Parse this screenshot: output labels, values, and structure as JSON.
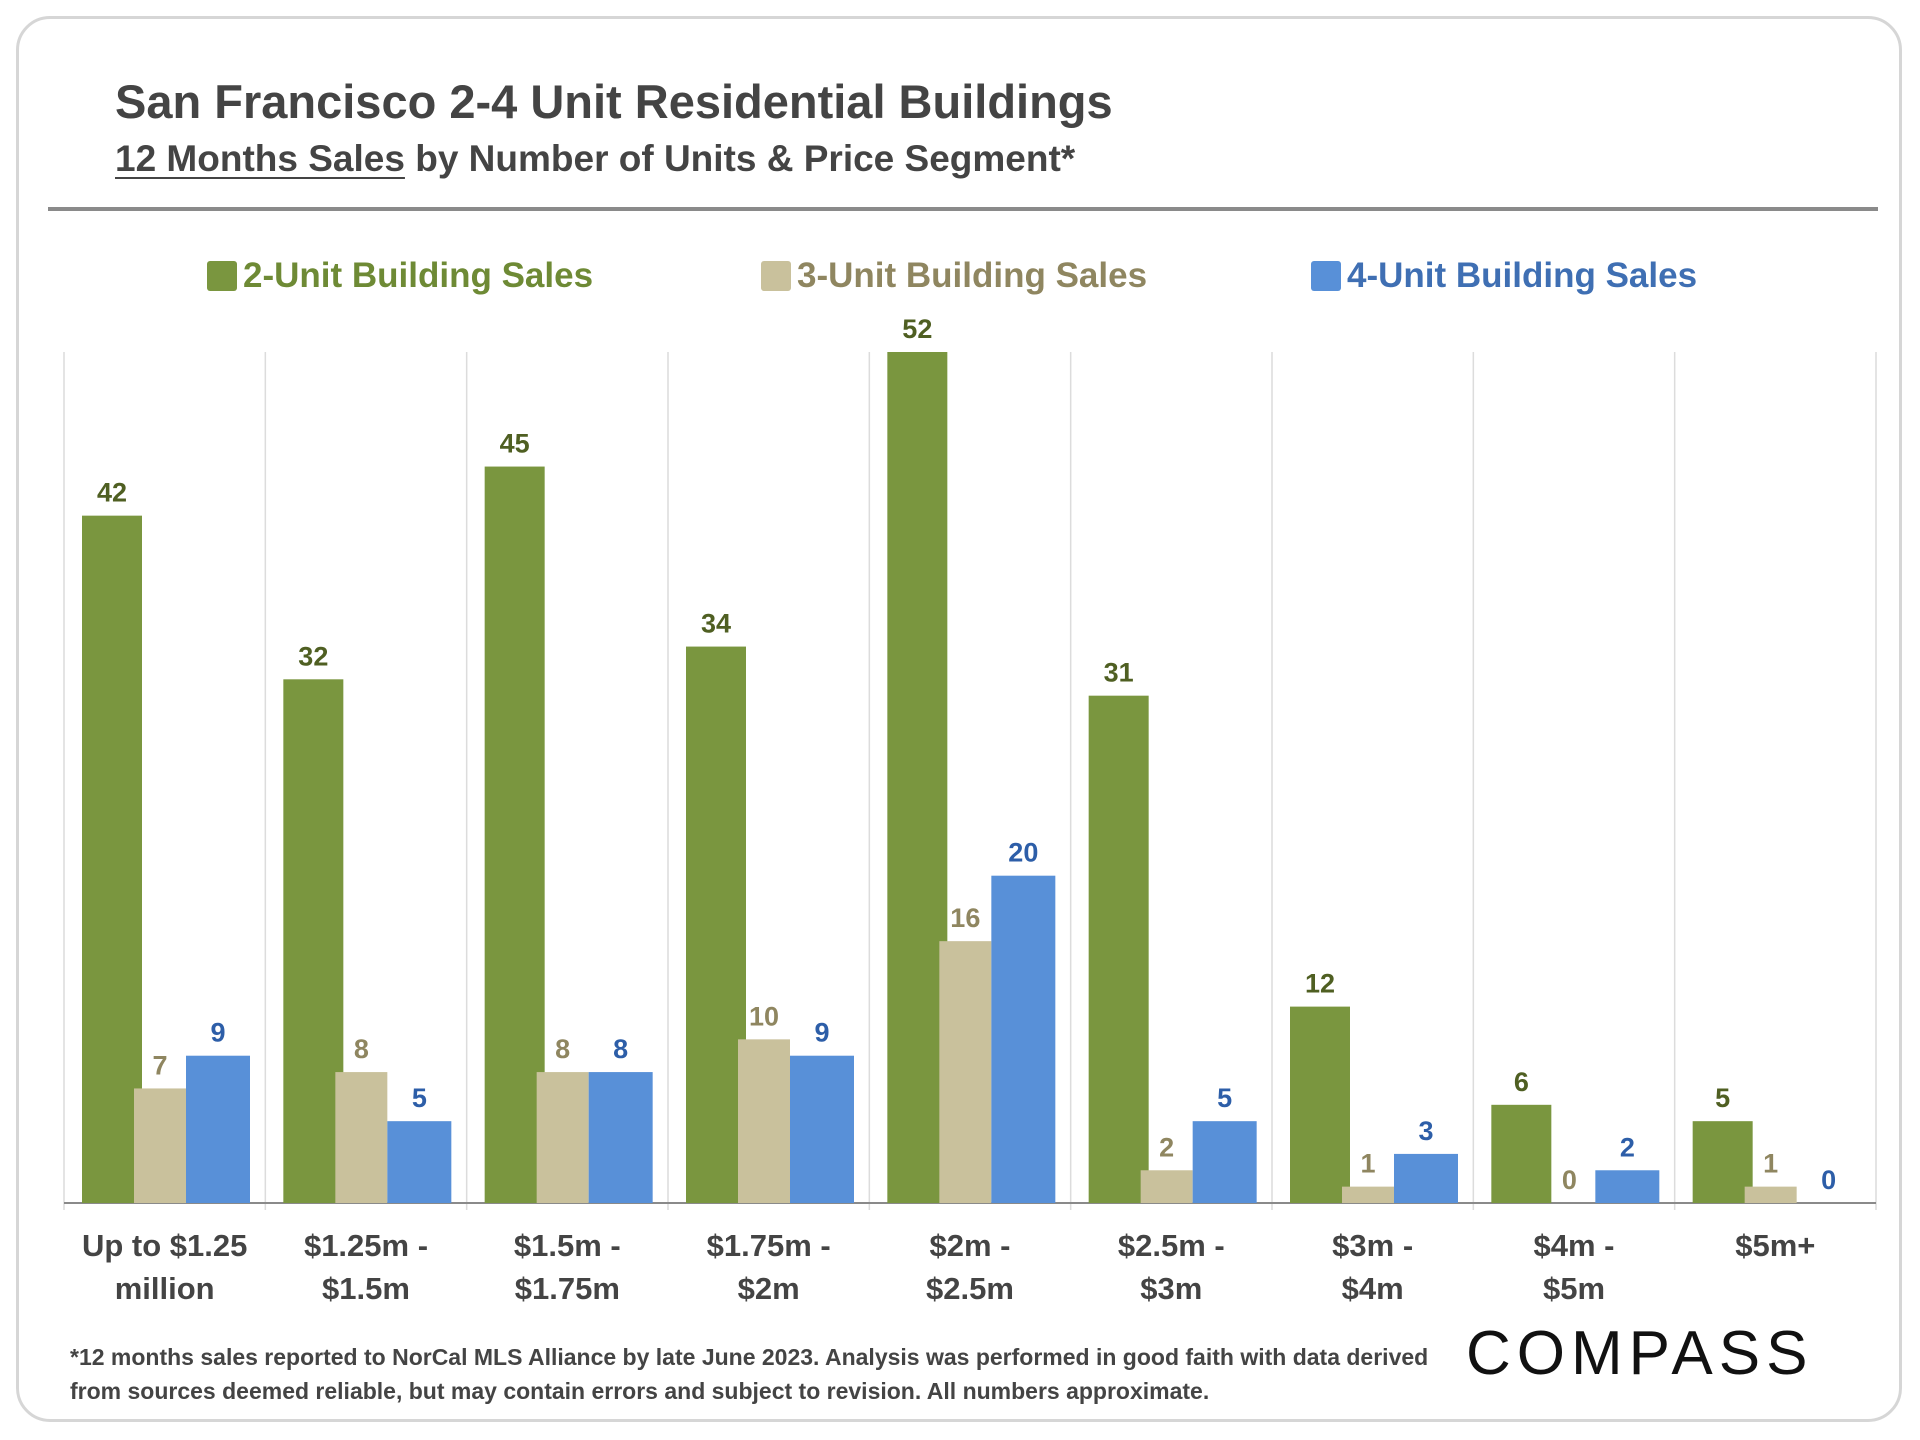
{
  "header": {
    "title": "San Francisco 2-4 Unit Residential Buildings",
    "subtitle_underlined": "12 Months Sales",
    "subtitle_rest": " by Number of Units & Price Segment*"
  },
  "legend": [
    {
      "label": "2-Unit Building Sales",
      "color": "#7a963f",
      "text_color": "#6e8a35"
    },
    {
      "label": "3-Unit Building Sales",
      "color": "#c9c19c",
      "text_color": "#8f8660"
    },
    {
      "label": "4-Unit Building Sales",
      "color": "#5890d8",
      "text_color": "#3f6fb3"
    }
  ],
  "chart_data": {
    "type": "bar",
    "title": "San Francisco 2-4 Unit Residential Buildings",
    "categories": [
      [
        "Up to $1.25",
        "million"
      ],
      [
        "$1.25m -",
        "$1.5m"
      ],
      [
        "$1.5m -",
        "$1.75m"
      ],
      [
        "$1.75m -",
        "$2m"
      ],
      [
        "$2m -",
        "$2.5m"
      ],
      [
        "$2.5m -",
        "$3m"
      ],
      [
        "$3m -",
        "$4m"
      ],
      [
        "$4m -",
        "$5m"
      ],
      [
        "$5m+"
      ]
    ],
    "series": [
      {
        "name": "2-Unit Building Sales",
        "color": "#7a963f",
        "label_color": "#4f5f22",
        "values": [
          42,
          32,
          45,
          34,
          52,
          31,
          12,
          6,
          5
        ]
      },
      {
        "name": "3-Unit Building Sales",
        "color": "#c9c19c",
        "label_color": "#8f8660",
        "values": [
          7,
          8,
          8,
          10,
          16,
          2,
          1,
          0,
          1
        ]
      },
      {
        "name": "4-Unit Building Sales",
        "color": "#5890d8",
        "label_color": "#2d5ea8",
        "values": [
          9,
          5,
          8,
          9,
          20,
          5,
          3,
          2,
          0
        ]
      }
    ],
    "xlabel": "",
    "ylabel": "",
    "ylim": [
      0,
      52
    ],
    "grid": "vertical category separators",
    "legend_position": "top"
  },
  "footnote": "*12 months sales reported to NorCal MLS Alliance by late June 2023. Analysis was performed in good faith with data derived from sources deemed reliable, but may contain errors and subject to revision. All numbers approximate.",
  "brand": {
    "logo_text": "COMPASS"
  }
}
